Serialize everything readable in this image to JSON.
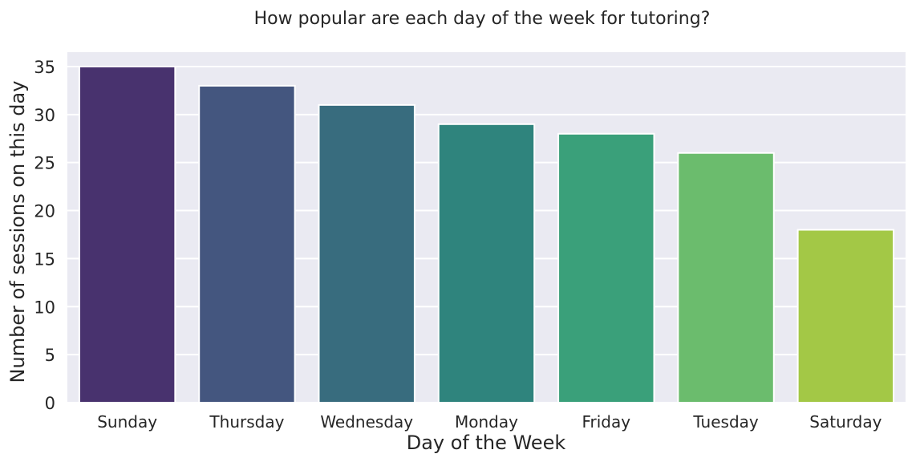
{
  "chart_data": {
    "type": "bar",
    "title": "How popular are each day of the week for tutoring?",
    "xlabel": "Day of the Week",
    "ylabel": "Number of sessions on this day",
    "categories": [
      "Sunday",
      "Thursday",
      "Wednesday",
      "Monday",
      "Friday",
      "Tuesday",
      "Saturday"
    ],
    "values": [
      35,
      33,
      31,
      29,
      28,
      26,
      18
    ],
    "colors": [
      "#48326e",
      "#44567f",
      "#386c7e",
      "#2f847d",
      "#3aa07a",
      "#6bbc6d",
      "#a3c846"
    ],
    "ylim": [
      0,
      36.5
    ],
    "yticks": [
      0,
      5,
      10,
      15,
      20,
      25,
      30,
      35
    ],
    "grid": true,
    "background": "#eaeaf2",
    "legend": "none"
  }
}
